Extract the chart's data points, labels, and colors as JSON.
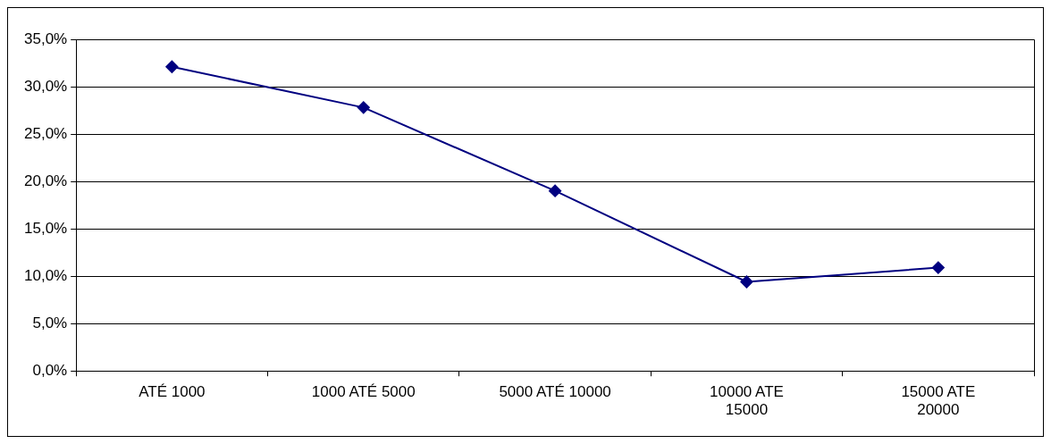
{
  "chart_data": {
    "type": "line",
    "categories": [
      "ATÉ 1000",
      "1000 ATÉ 5000",
      "5000 ATÉ 10000",
      "10000 ATE 15000",
      "15000 ATE 20000"
    ],
    "series": [
      {
        "color": "#000080",
        "values": [
          32.1,
          27.8,
          19.0,
          9.4,
          10.9
        ]
      }
    ],
    "ylim": [
      0,
      35
    ],
    "yticks": [
      {
        "value": 0,
        "label": "0,0%"
      },
      {
        "value": 5,
        "label": "5,0%"
      },
      {
        "value": 10,
        "label": "10,0%"
      },
      {
        "value": 15,
        "label": "15,0%"
      },
      {
        "value": 20,
        "label": "20,0%"
      },
      {
        "value": 25,
        "label": "25,0%"
      },
      {
        "value": 30,
        "label": "30,0%"
      },
      {
        "value": 35,
        "label": "35,0%"
      }
    ],
    "grid": "y",
    "legend": false,
    "marker": "diamond",
    "line_style": "solid"
  }
}
